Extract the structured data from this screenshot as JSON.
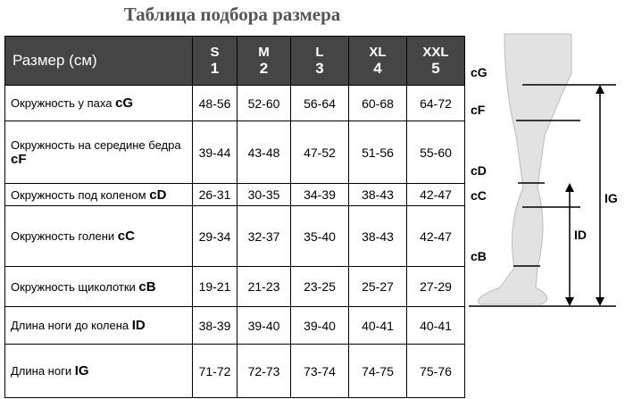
{
  "header": {
    "title": "Таблица подбора размера"
  },
  "table": {
    "corner": "Размер (см)",
    "sizes": [
      {
        "letter": "S",
        "number": "1"
      },
      {
        "letter": "M",
        "number": "2"
      },
      {
        "letter": "L",
        "number": "3"
      },
      {
        "letter": "XL",
        "number": "4"
      },
      {
        "letter": "XXL",
        "number": "5"
      }
    ],
    "rows": [
      {
        "label": "Окружность у паха",
        "code": "cG",
        "values": [
          "48-56",
          "52-60",
          "56-64",
          "60-68",
          "64-72"
        ]
      },
      {
        "label": "Окружность на середине бедра",
        "code": "cF",
        "values": [
          "39-44",
          "43-48",
          "47-52",
          "51-56",
          "55-60"
        ]
      },
      {
        "label": "Окружность под коленом",
        "code": "cD",
        "values": [
          "26-31",
          "30-35",
          "34-39",
          "38-43",
          "42-47"
        ]
      },
      {
        "label": "Окружность голени",
        "code": "cC",
        "values": [
          "29-34",
          "32-37",
          "35-40",
          "38-43",
          "42-47"
        ]
      },
      {
        "label": "Окружность щиколотки",
        "code": "cB",
        "values": [
          "19-21",
          "21-23",
          "23-25",
          "25-27",
          "27-29"
        ]
      },
      {
        "label": "Длина ноги до колена",
        "code": "ID",
        "values": [
          "38-39",
          "39-40",
          "39-40",
          "40-41",
          "40-41"
        ]
      },
      {
        "label": "Длина ноги",
        "code": "IG",
        "values": [
          "71-72",
          "72-73",
          "73-74",
          "74-75",
          "75-76"
        ]
      }
    ]
  },
  "diagram": {
    "labels": [
      "cG",
      "cF",
      "cD",
      "cC",
      "cB",
      "IG",
      "ID"
    ]
  }
}
